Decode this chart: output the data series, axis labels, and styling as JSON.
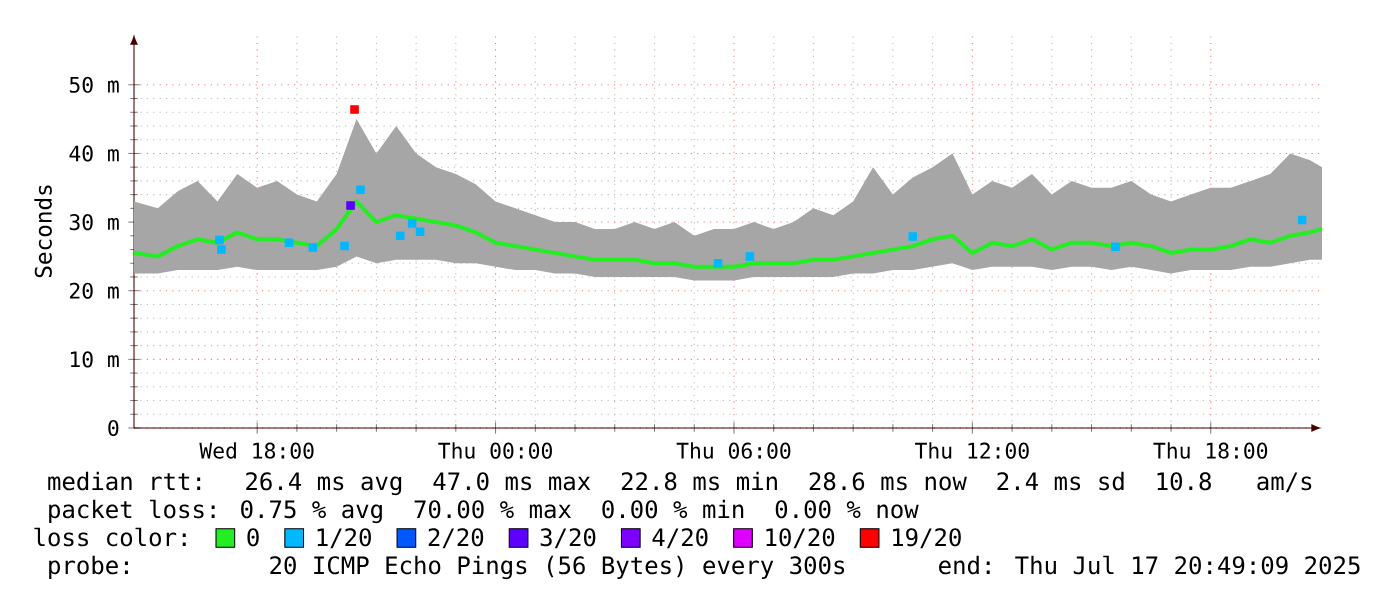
{
  "chart_data": {
    "type": "line",
    "ylabel": "Seconds",
    "legend_title": "loss color:",
    "legend": "bottom",
    "grid": true,
    "line_style": "solid",
    "xlim": [
      "2025-07-16T14:54",
      "2025-07-17T20:48"
    ],
    "ylim": [
      0,
      57.4
    ],
    "xticks": [
      {
        "value": "2025-07-16T18:00",
        "label": "Wed 18:00"
      },
      {
        "value": "2025-07-17T00:00",
        "label": "Thu 00:00"
      },
      {
        "value": "2025-07-17T06:00",
        "label": "Thu 06:00"
      },
      {
        "value": "2025-07-17T12:00",
        "label": "Thu 12:00"
      },
      {
        "value": "2025-07-17T18:00",
        "label": "Thu 18:00"
      }
    ],
    "yticks": [
      0,
      {
        "value": 10,
        "label": "10 m"
      },
      {
        "value": 20,
        "label": "20 m"
      },
      {
        "value": 30,
        "label": "30 m"
      },
      {
        "value": 40,
        "label": "40 m"
      },
      {
        "value": 50,
        "label": "50 m"
      }
    ],
    "series": [
      {
        "name": "0",
        "color": "#22ee22",
        "x": [
          "2025-07-16T14:54",
          "2025-07-16T15:30",
          "2025-07-16T16:00",
          "2025-07-16T16:30",
          "2025-07-16T17:00",
          "2025-07-16T17:30",
          "2025-07-16T18:00",
          "2025-07-16T18:30",
          "2025-07-16T19:00",
          "2025-07-16T19:30",
          "2025-07-16T20:00",
          "2025-07-16T20:30",
          "2025-07-16T21:00",
          "2025-07-16T21:30",
          "2025-07-16T22:00",
          "2025-07-16T22:30",
          "2025-07-16T23:00",
          "2025-07-16T23:30",
          "2025-07-17T00:00",
          "2025-07-17T00:30",
          "2025-07-17T01:00",
          "2025-07-17T01:30",
          "2025-07-17T02:00",
          "2025-07-17T02:30",
          "2025-07-17T03:00",
          "2025-07-17T03:30",
          "2025-07-17T04:00",
          "2025-07-17T04:30",
          "2025-07-17T05:00",
          "2025-07-17T05:30",
          "2025-07-17T06:00",
          "2025-07-17T06:30",
          "2025-07-17T07:00",
          "2025-07-17T07:30",
          "2025-07-17T08:00",
          "2025-07-17T08:30",
          "2025-07-17T09:00",
          "2025-07-17T09:30",
          "2025-07-17T10:00",
          "2025-07-17T10:30",
          "2025-07-17T11:00",
          "2025-07-17T11:30",
          "2025-07-17T12:00",
          "2025-07-17T12:30",
          "2025-07-17T13:00",
          "2025-07-17T13:30",
          "2025-07-17T14:00",
          "2025-07-17T14:30",
          "2025-07-17T15:00",
          "2025-07-17T15:30",
          "2025-07-17T16:00",
          "2025-07-17T16:30",
          "2025-07-17T17:00",
          "2025-07-17T17:30",
          "2025-07-17T18:00",
          "2025-07-17T18:30",
          "2025-07-17T19:00",
          "2025-07-17T19:30",
          "2025-07-17T20:00",
          "2025-07-17T20:30",
          "2025-07-17T20:48"
        ],
        "values": [
          25.5,
          25,
          26.5,
          27.5,
          27,
          28.5,
          27.5,
          27.5,
          27,
          26.5,
          29,
          33,
          30,
          31,
          30.5,
          30,
          29.5,
          28.5,
          27,
          26.5,
          26,
          25.5,
          25,
          24.5,
          24.5,
          24.5,
          24,
          24,
          23.5,
          23.5,
          23.5,
          24,
          24,
          24,
          24.5,
          24.5,
          25,
          25.5,
          26,
          26.5,
          27.5,
          28,
          25.5,
          27,
          26.5,
          27.5,
          26,
          27,
          27,
          26.5,
          27,
          26.5,
          25.5,
          26,
          26,
          26.5,
          27.5,
          27,
          28,
          28.5,
          29
        ],
        "lower": [
          22.5,
          22.5,
          23,
          23,
          23,
          23.5,
          23,
          23,
          23,
          23,
          23.5,
          25,
          24,
          24.5,
          24.5,
          24.5,
          24,
          24,
          23.5,
          23,
          23,
          22.5,
          22.5,
          22,
          22,
          22,
          22,
          22,
          21.5,
          21.5,
          21.5,
          22,
          22,
          22,
          22,
          22,
          22.5,
          22.5,
          23,
          23,
          23.5,
          24,
          23,
          23.5,
          23.5,
          23.5,
          23,
          23.5,
          23.5,
          23,
          23.5,
          23,
          22.5,
          23,
          23,
          23,
          23.5,
          23.5,
          24,
          24.5,
          24.5
        ],
        "upper": [
          33,
          32,
          34.5,
          36,
          33,
          37,
          35,
          36,
          34,
          33,
          37,
          45,
          40,
          44,
          40,
          38,
          37,
          35.5,
          33,
          32,
          31,
          30,
          30,
          29,
          29,
          30,
          29,
          30,
          28,
          29,
          29,
          30,
          29,
          30,
          32,
          31,
          33,
          38,
          34,
          36.5,
          38,
          40,
          34,
          36,
          35,
          37,
          34,
          36,
          35,
          35,
          36,
          34,
          33,
          34,
          35,
          35,
          36,
          37,
          40,
          39,
          38
        ]
      },
      {
        "name": "1/20",
        "type": "scatter",
        "marker": "square",
        "color": "#00b8ff",
        "x": [
          "2025-07-16T17:03",
          "2025-07-16T17:06",
          "2025-07-16T18:48",
          "2025-07-16T19:24",
          "2025-07-16T20:12",
          "2025-07-16T20:36",
          "2025-07-16T21:36",
          "2025-07-16T21:54",
          "2025-07-16T22:06",
          "2025-07-17T05:36",
          "2025-07-17T06:24",
          "2025-07-17T10:30",
          "2025-07-17T15:36",
          "2025-07-17T20:18"
        ],
        "values": [
          27.4,
          26,
          27,
          26.3,
          26.5,
          34.7,
          28,
          29.8,
          28.6,
          24,
          25,
          27.9,
          26.4,
          30.3
        ]
      },
      {
        "name": "2/20",
        "type": "scatter",
        "marker": "square",
        "color": "#0059ff"
      },
      {
        "name": "3/20",
        "type": "scatter",
        "marker": "square",
        "color": "#5e00ff",
        "x": [
          "2025-07-16T20:21"
        ],
        "values": [
          32.4
        ]
      },
      {
        "name": "4/20",
        "type": "scatter",
        "marker": "square",
        "color": "#7e00ff"
      },
      {
        "name": "10/20",
        "type": "scatter",
        "marker": "square",
        "color": "#dd00ff"
      },
      {
        "name": "19/20",
        "type": "scatter",
        "marker": "square",
        "color": "#ff0000",
        "x": [
          "2025-07-16T20:27"
        ],
        "values": [
          46.4
        ]
      }
    ],
    "annotations": [
      "median rtt:  26.4 ms avg  47.0 ms max  22.8 ms min  28.6 ms now  2.4 ms sd  10.8   am/s",
      "packet loss: 0.75 % avg  70.00 % max  0.00 % min  0.00 % now",
      "probe:       20 ICMP Echo Pings (56 Bytes) every 300s",
      "end: Thu Jul 17 20:49:09 2025"
    ]
  }
}
